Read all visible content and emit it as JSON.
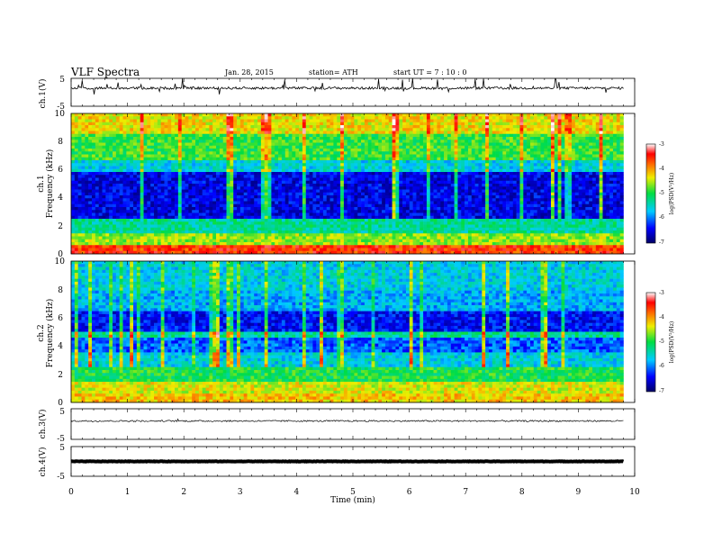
{
  "header": {
    "title": "VLF  Spectra",
    "date": "Jan. 28, 2015",
    "station": "station= ATH",
    "start": "start  UT  =   7  : 10 : 0"
  },
  "chart_data": [
    {
      "type": "line",
      "panel": "ch.1",
      "ylabel": "ch.1(V)",
      "ylim": [
        -5,
        5
      ],
      "y_ticks": [
        "5",
        "-5"
      ],
      "baseline_value": 1.5,
      "x_range_min": [
        0,
        9.8
      ]
    },
    {
      "type": "heatmap",
      "panel": "ch.1 spectrogram",
      "ylabel_1": "ch.1",
      "ylabel_2": "Frequency  (kHz)",
      "xlim": [
        0,
        10
      ],
      "ylim": [
        0,
        10
      ],
      "y_ticks": [
        "0",
        "2",
        "4",
        "6",
        "8",
        "10"
      ],
      "colorbar": {
        "label": "log(PSD(V²/Hz)",
        "range": [
          -7,
          -3
        ],
        "ticks": [
          "-3",
          "-4",
          "-5",
          "-6",
          "-7"
        ]
      }
    },
    {
      "type": "heatmap",
      "panel": "ch.2 spectrogram",
      "ylabel_1": "ch.2",
      "ylabel_2": "Frequency  (kHz)",
      "xlim": [
        0,
        10
      ],
      "ylim": [
        0,
        10
      ],
      "y_ticks": [
        "0",
        "2",
        "4",
        "6",
        "8",
        "10"
      ],
      "colorbar": {
        "label": "log(PSD(V²/Hz)",
        "range": [
          -7,
          -3
        ],
        "ticks": [
          "-3",
          "-4",
          "-5",
          "-6",
          "-7"
        ]
      }
    },
    {
      "type": "line",
      "panel": "ch.3",
      "ylabel": "ch.3(V)",
      "ylim": [
        -5,
        5
      ],
      "y_ticks": [
        "5",
        "-5"
      ],
      "baseline_value": 1.0
    },
    {
      "type": "line",
      "panel": "ch.4",
      "ylabel": "ch.4(V)",
      "ylim": [
        -5,
        5
      ],
      "y_ticks": [
        "5",
        "-5"
      ],
      "baseline_value": 0.0
    }
  ],
  "x_axis": {
    "label": "Time  (min)",
    "ticks": [
      "0",
      "1",
      "2",
      "3",
      "4",
      "5",
      "6",
      "7",
      "8",
      "9",
      "10"
    ],
    "data_end_min": 9.8
  }
}
